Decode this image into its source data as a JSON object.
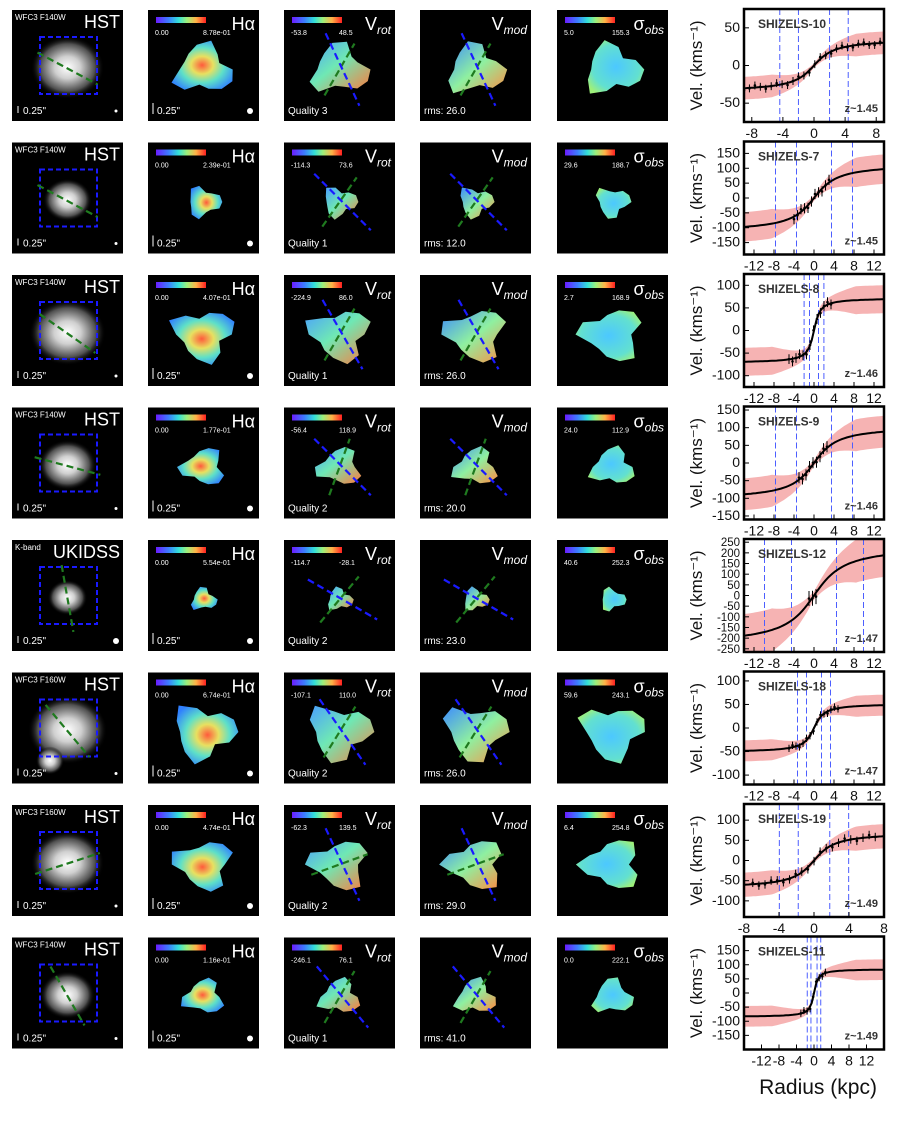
{
  "figure": {
    "xlabel": "Radius (kpc)",
    "ylabel": "Vel. (kms⁻¹)",
    "panel_labels": [
      "Hα",
      "V",
      "V",
      "σ"
    ],
    "panel_subs": [
      "",
      "rot",
      "mod",
      "obs"
    ],
    "scalebar_label": "0.25\""
  },
  "colors": {
    "panel_bg": "#000000",
    "hst_box": "#1a1aff",
    "pa_green": "#1f7a1f",
    "pa_blue": "#1a1aff",
    "model_band": "#f4a0a0",
    "curve": "#000000",
    "grid_dash": "#4d5fff"
  },
  "rows": [
    {
      "instrument": "WFC3 F140W",
      "survey": "HST",
      "ha_min": "0.00",
      "ha_max": "8.78e-01",
      "v_min": "-53.8",
      "v_max": "48.5",
      "quality": "Quality 3",
      "rms": "rms: 26.0",
      "s_min": "5.0",
      "s_max": "155.3",
      "name": "SHIZELS-10",
      "z": "z~1.45",
      "xlim": [
        -9,
        9
      ],
      "xticks": [
        "-8",
        "-4",
        "0",
        "4",
        "8"
      ],
      "yticks": [
        "50",
        "0",
        "-50"
      ],
      "ylim": [
        -75,
        75
      ],
      "vmax": 35,
      "rt": 2.0,
      "pa": 28,
      "pm": -60,
      "pr": 65,
      "sa": [
        -9,
        9
      ]
    },
    {
      "instrument": "WFC3 F140W",
      "survey": "HST",
      "ha_min": "0.00",
      "ha_max": "2.39e-01",
      "v_min": "-114.3",
      "v_max": "73.6",
      "quality": "Quality 1",
      "rms": "rms: 12.0",
      "s_min": "29.6",
      "s_max": "188.7",
      "name": "SHIZELS-7",
      "z": "z~1.45",
      "xlim": [
        -14,
        14
      ],
      "xticks": [
        "-12",
        "-8",
        "-4",
        "0",
        "4",
        "8",
        "12"
      ],
      "yticks": [
        "150",
        "100",
        "50",
        "0",
        "-50",
        "-100",
        "-150"
      ],
      "ylim": [
        -190,
        190
      ],
      "vmax": 115,
      "rt": 3.5,
      "pa": 28,
      "pm": -55,
      "pr": 45,
      "sa": [
        -4,
        3
      ]
    },
    {
      "instrument": "WFC3 F140W",
      "survey": "HST",
      "ha_min": "0.00",
      "ha_max": "4.07e-01",
      "v_min": "-224.9",
      "v_max": "86.0",
      "quality": "Quality 1",
      "rms": "rms: 26.0",
      "s_min": "2.7",
      "s_max": "168.9",
      "name": "SHIZELS-8",
      "z": "z~1.46",
      "xlim": [
        -14,
        14
      ],
      "xticks": [
        "-12",
        "-8",
        "-4",
        "0",
        "4",
        "8",
        "12"
      ],
      "yticks": [
        "100",
        "50",
        "0",
        "-50",
        "-100"
      ],
      "ylim": [
        -125,
        125
      ],
      "vmax": 72,
      "rt": 0.9,
      "pa": 35,
      "pm": -60,
      "pr": 60,
      "sa": [
        -5,
        4
      ]
    },
    {
      "instrument": "WFC3 F140W",
      "survey": "HST",
      "ha_min": "0.00",
      "ha_max": "1.77e-01",
      "v_min": "-56.4",
      "v_max": "118.9",
      "quality": "Quality 2",
      "rms": "rms: 20.0",
      "s_min": "24.0",
      "s_max": "112.9",
      "name": "SHIZELS-9",
      "z": "z~1.46",
      "xlim": [
        -14,
        14
      ],
      "xticks": [
        "-12",
        "-8",
        "-4",
        "0",
        "4",
        "8",
        "12"
      ],
      "yticks": [
        "150",
        "100",
        "50",
        "0",
        "-50",
        "-100",
        "-150"
      ],
      "ylim": [
        -160,
        160
      ],
      "vmax": 105,
      "rt": 3.5,
      "pa": 15,
      "pm": -70,
      "pr": 45,
      "sa": [
        -3,
        3
      ]
    },
    {
      "instrument": "K-band",
      "survey": "UKIDSS",
      "ha_min": "0.00",
      "ha_max": "5.54e-01",
      "v_min": "-114.7",
      "v_max": "-28.1",
      "quality": "Quality 2",
      "rms": "rms: 23.0",
      "s_min": "40.6",
      "s_max": "252.3",
      "name": "SHIZELS-12",
      "z": "z~1.47",
      "xlim": [
        -14,
        14
      ],
      "xticks": [
        "-12",
        "-8",
        "-4",
        "0",
        "4",
        "8",
        "12"
      ],
      "yticks": [
        "250",
        "200",
        "150",
        "100",
        "50",
        "0",
        "-50",
        "-100",
        "-150",
        "-200",
        "-250"
      ],
      "ylim": [
        -265,
        265
      ],
      "vmax": 235,
      "rt": 4.5,
      "pa": 80,
      "pm": -50,
      "pr": 30,
      "sa": [
        -1,
        1
      ]
    },
    {
      "instrument": "WFC3 F160W",
      "survey": "HST",
      "ha_min": "0.00",
      "ha_max": "6.74e-01",
      "v_min": "-107.1",
      "v_max": "110.0",
      "quality": "Quality 2",
      "rms": "rms: 26.0",
      "s_min": "59.6",
      "s_max": "243.1",
      "name": "SHIZELS-18",
      "z": "z~1.47",
      "xlim": [
        -14,
        14
      ],
      "xticks": [
        "-12",
        "-8",
        "-4",
        "0",
        "4",
        "8",
        "12"
      ],
      "yticks": [
        "100",
        "50",
        "0",
        "-50",
        "-100"
      ],
      "ylim": [
        -120,
        120
      ],
      "vmax": 52,
      "rt": 1.5,
      "pa": 50,
      "pm": -58,
      "pr": 55,
      "sa": [
        -5,
        5
      ]
    },
    {
      "instrument": "WFC3 F160W",
      "survey": "HST",
      "ha_min": "0.00",
      "ha_max": "4.74e-01",
      "v_min": "-62.3",
      "v_max": "139.5",
      "quality": "Quality 2",
      "rms": "rms: 29.0",
      "s_min": "6.4",
      "s_max": "254.8",
      "name": "SHIZELS-19",
      "z": "z~1.49",
      "xlim": [
        -8,
        8
      ],
      "xticks": [
        "-8",
        "-4",
        "0",
        "4",
        "8"
      ],
      "yticks": [
        "100",
        "50",
        "0",
        "-50",
        "-100"
      ],
      "ylim": [
        -140,
        140
      ],
      "vmax": 70,
      "rt": 1.8,
      "pa": -18,
      "pm": -20,
      "pr": 65,
      "sa": [
        -7,
        7
      ]
    },
    {
      "instrument": "WFC3 F140W",
      "survey": "HST",
      "ha_min": "0.00",
      "ha_max": "1.16e-01",
      "v_min": "-246.1",
      "v_max": "76.1",
      "quality": "Quality 1",
      "rms": "rms: 41.0",
      "s_min": "0.0",
      "s_max": "222.1",
      "name": "SHIZELS-11",
      "z": "z~1.49",
      "xlim": [
        -16,
        16
      ],
      "xticks": [
        "-12",
        "-8",
        "-4",
        "0",
        "4",
        "8",
        "12"
      ],
      "yticks": [
        "150",
        "100",
        "50",
        "0",
        "-50",
        "-100",
        "-150"
      ],
      "ylim": [
        -200,
        200
      ],
      "vmax": 85,
      "rt": 0.7,
      "pa": 60,
      "pm": -60,
      "pr": 50,
      "sa": [
        -3,
        3
      ]
    }
  ]
}
